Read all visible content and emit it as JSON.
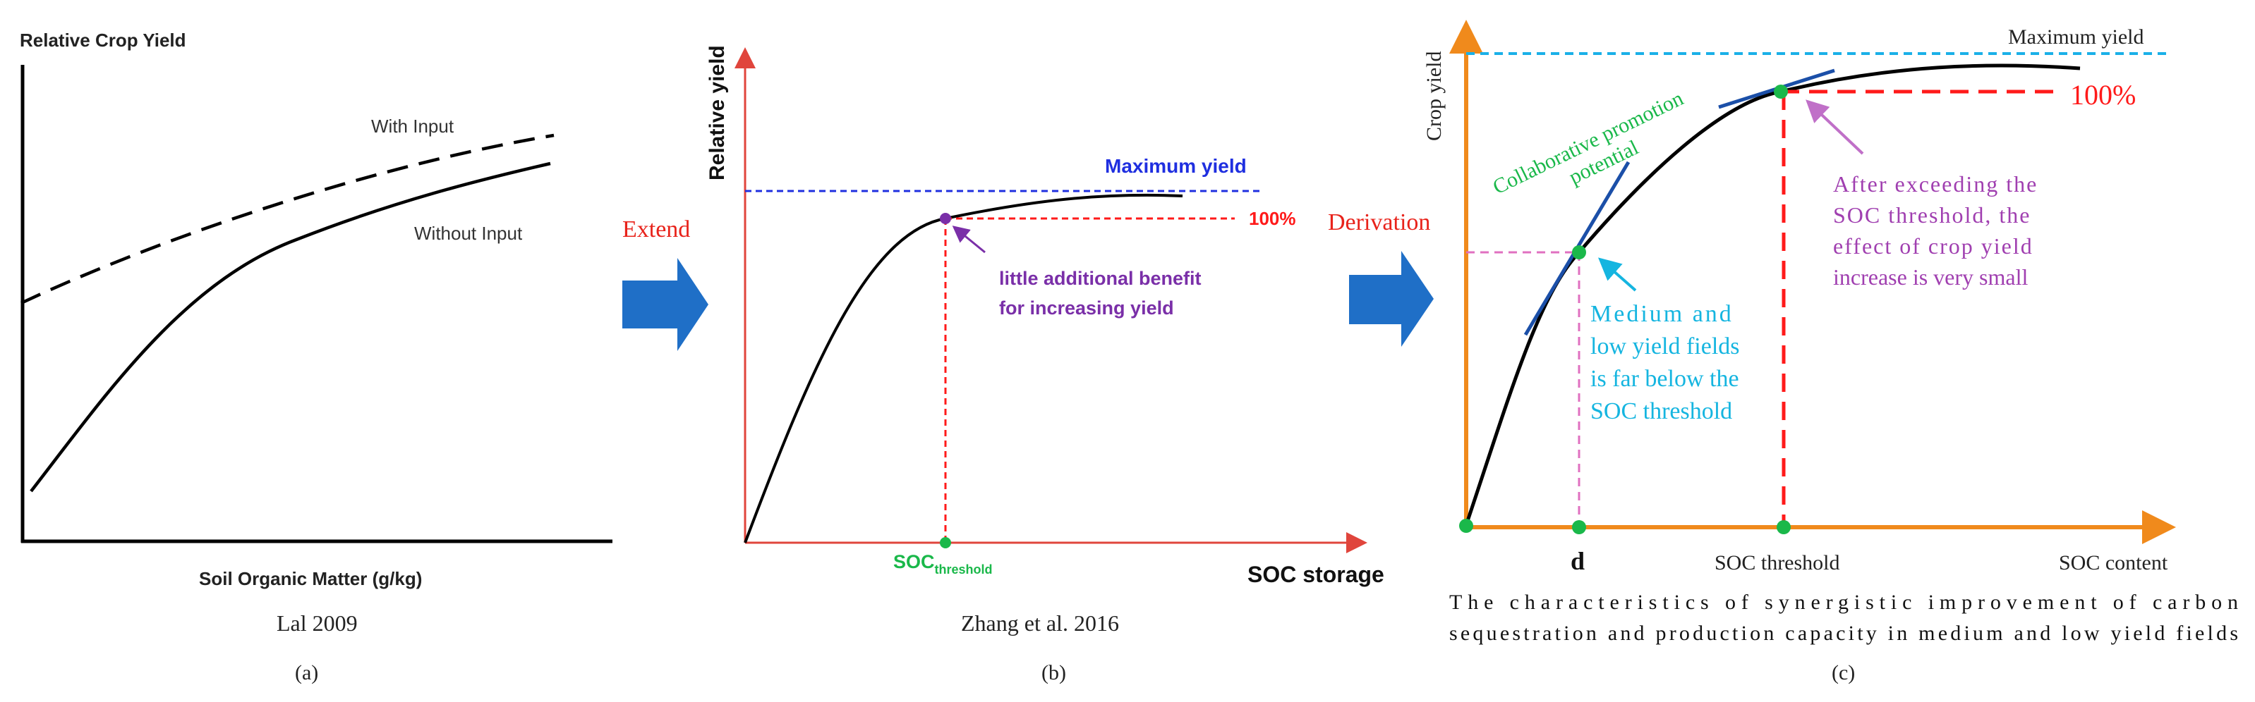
{
  "panel_a": {
    "y_axis_label": "Relative Crop Yield",
    "x_axis_label": "Soil Organic Matter (g/kg)",
    "series_with_input": "With Input",
    "series_without_input": "Without Input",
    "citation": "Lal 2009",
    "panel_label": "(a)"
  },
  "arrow_1": {
    "label": "Extend",
    "color": "#e8231b",
    "arrow_color": "#1f6fc7"
  },
  "panel_b": {
    "y_axis_label": "Relative yield",
    "x_axis_label": "SOC storage",
    "max_yield_label": "Maximum yield",
    "percent_label": "100%",
    "annotation_line1": "little additional benefit",
    "annotation_line2": "for increasing yield",
    "threshold_main": "SOC",
    "threshold_sub": "threshold",
    "citation": "Zhang et al. 2016",
    "panel_label": "(b)"
  },
  "arrow_2": {
    "label": "Derivation",
    "color": "#e8231b",
    "arrow_color": "#1f6fc7"
  },
  "panel_c": {
    "y_axis_label": "Crop yield",
    "max_yield_label": "Maximum yield",
    "percent_label": "100%",
    "promo_line1": "Collaborative promotion",
    "promo_line2": "potential",
    "right_note": [
      "After exceeding the",
      "SOC threshold, the",
      "effect of crop yield",
      "increase is very small"
    ],
    "left_note": [
      "Medium and",
      "low yield fields",
      "is far below the",
      "SOC threshold"
    ],
    "x_tick_d": "d",
    "x_tick_threshold": "SOC threshold",
    "x_tick_content": "SOC content",
    "caption_line1": "The characteristics of synergistic improvement of carbon",
    "caption_line2": "sequestration and production capacity in medium and low yield fields",
    "panel_label": "(c)"
  },
  "colors": {
    "axis_b": "#e0453c",
    "axis_c": "#f08a1c",
    "max_line_b": "#1f2fe0",
    "max_line_c": "#1ab0e8",
    "threshold_red": "#ff1a1a",
    "purple": "#7a2fa8",
    "green": "#1ab84a",
    "cyan": "#15b5e0",
    "pink": "#e070c0",
    "magenta_text": "#a03fb0",
    "tangent": "#1b4fa8"
  }
}
